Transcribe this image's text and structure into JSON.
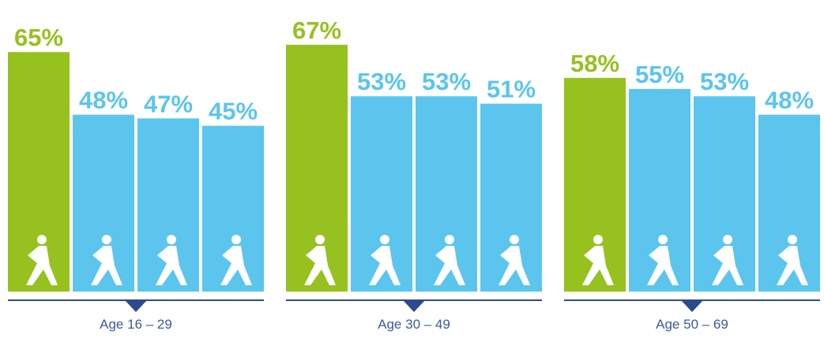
{
  "chart_data": [
    {
      "type": "bar",
      "title": "Age 16 – 29",
      "values": [
        65,
        48,
        47,
        45
      ],
      "value_labels": [
        "65%",
        "48%",
        "47%",
        "45%"
      ],
      "colors": [
        "#96c11f",
        "#5bc5ee",
        "#5bc5ee",
        "#5bc5ee"
      ]
    },
    {
      "type": "bar",
      "title": "Age 30 – 49",
      "values": [
        67,
        53,
        53,
        51
      ],
      "value_labels": [
        "67%",
        "53%",
        "53%",
        "51%"
      ],
      "colors": [
        "#96c11f",
        "#5bc5ee",
        "#5bc5ee",
        "#5bc5ee"
      ]
    },
    {
      "type": "bar",
      "title": "Age 50 – 69",
      "values": [
        58,
        55,
        53,
        48
      ],
      "value_labels": [
        "58%",
        "55%",
        "53%",
        "48%"
      ],
      "colors": [
        "#96c11f",
        "#5bc5ee",
        "#5bc5ee",
        "#5bc5ee"
      ]
    }
  ]
}
